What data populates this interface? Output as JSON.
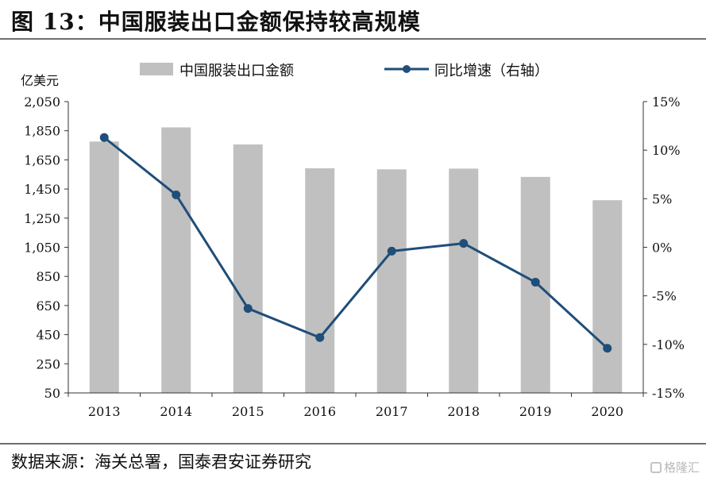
{
  "title": "图 13：中国服装出口金额保持较高规模",
  "source": "数据来源：海关总署，国泰君安证券研究",
  "watermark": "格隆汇",
  "colors": {
    "bar": "#c0c0c0",
    "line": "#1f4e79",
    "axis": "#333333"
  },
  "chart_data": {
    "type": "bar",
    "categories": [
      "2013",
      "2014",
      "2015",
      "2016",
      "2017",
      "2018",
      "2019",
      "2020"
    ],
    "series": [
      {
        "name": "中国服装出口金额",
        "type": "bar",
        "axis": "left",
        "values": [
          1776,
          1873,
          1756,
          1592,
          1585,
          1590,
          1533,
          1373
        ]
      },
      {
        "name": "同比增速（右轴）",
        "type": "line",
        "axis": "right",
        "values": [
          11.3,
          5.4,
          -6.3,
          -9.3,
          -0.4,
          0.4,
          -3.6,
          -10.4
        ]
      }
    ],
    "ylabel": "亿美元",
    "ylim": [
      50,
      2050
    ],
    "y_ticks": [
      "2,050",
      "1,850",
      "1,650",
      "1,450",
      "1,250",
      "1,050",
      "850",
      "650",
      "450",
      "250",
      "50"
    ],
    "y2lim": [
      -15,
      15
    ],
    "y2_ticks": [
      "15%",
      "10%",
      "5%",
      "0%",
      "-5%",
      "-10%",
      "-15%"
    ],
    "legend": "top",
    "grid": false
  }
}
